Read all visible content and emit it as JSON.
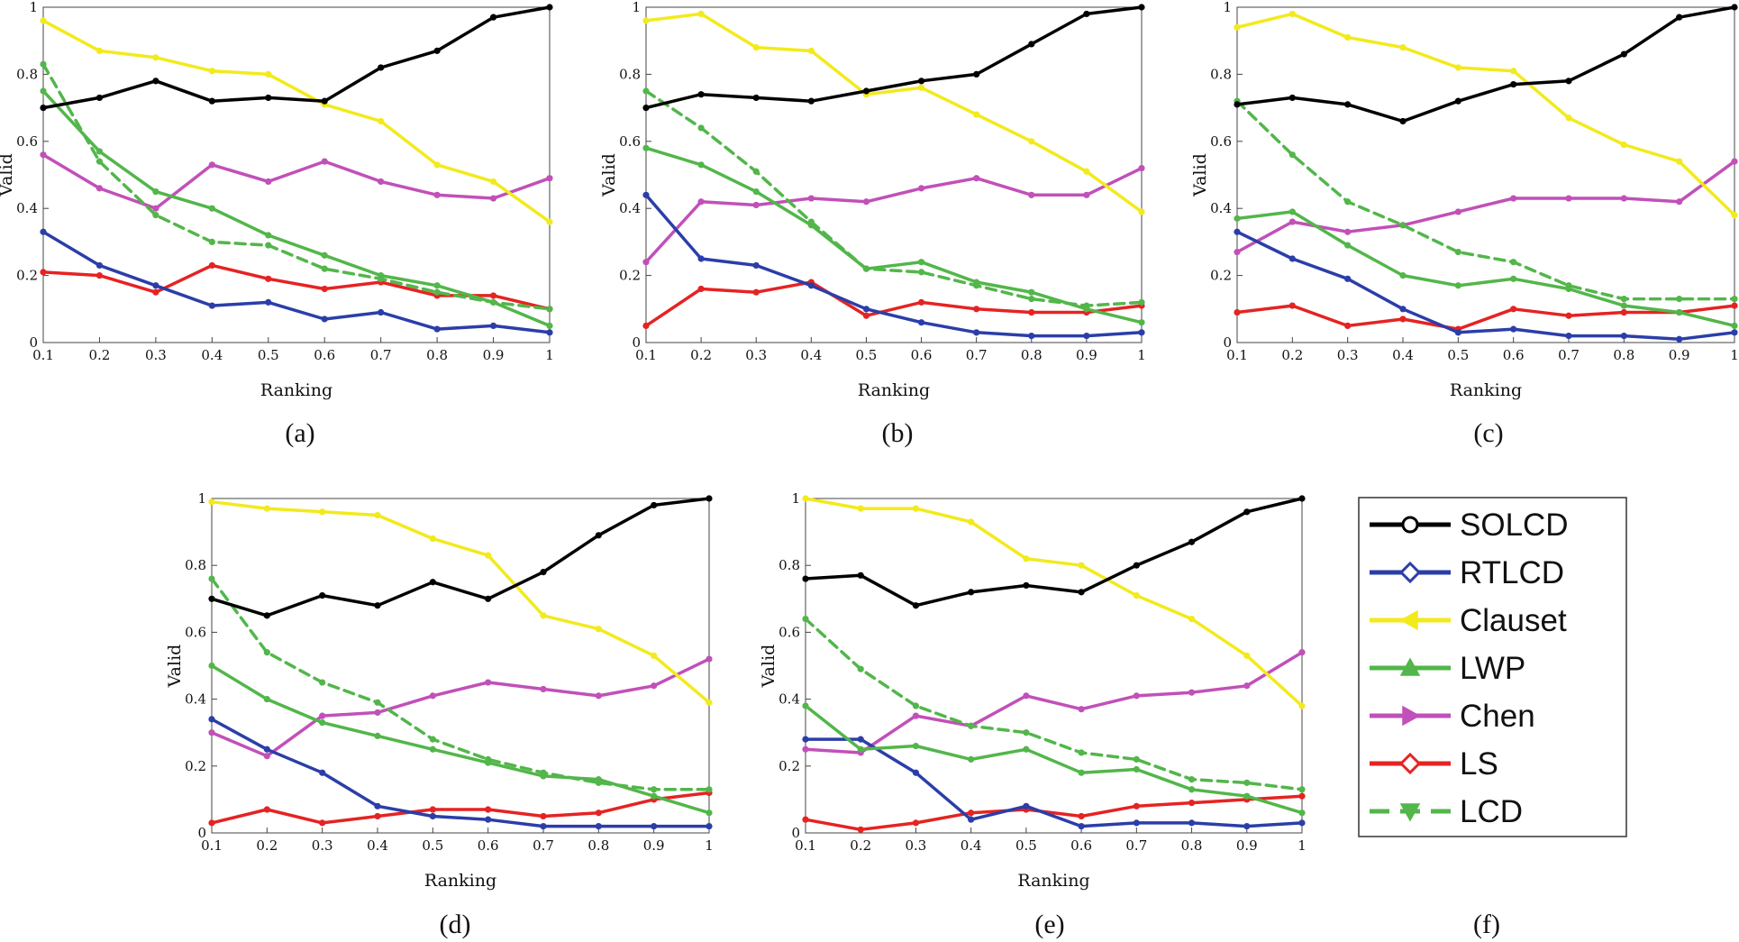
{
  "figure": {
    "captions": [
      "(a)",
      "(b)",
      "(c)",
      "(d)",
      "(e)",
      "(f)"
    ]
  },
  "legend": {
    "items": [
      {
        "name": "SOLCD",
        "color": "#000000",
        "dash": false,
        "marker": "circle"
      },
      {
        "name": "RTLCD",
        "color": "#2b3ea8",
        "dash": false,
        "marker": "diamond"
      },
      {
        "name": "Clauset",
        "color": "#f2ea1c",
        "dash": false,
        "marker": "triangle-left"
      },
      {
        "name": "LWP",
        "color": "#52b64a",
        "dash": false,
        "marker": "triangle-up"
      },
      {
        "name": "Chen",
        "color": "#c150b8",
        "dash": false,
        "marker": "triangle-right"
      },
      {
        "name": "LS",
        "color": "#e52323",
        "dash": false,
        "marker": "diamond"
      },
      {
        "name": "LCD",
        "color": "#52b64a",
        "dash": true,
        "marker": "triangle-down"
      }
    ]
  },
  "chart_data": [
    {
      "type": "line",
      "caption": "(a)",
      "xlabel": "Ranking",
      "ylabel": "Valid",
      "xlim": [
        0.1,
        1
      ],
      "ylim": [
        0,
        1
      ],
      "x": [
        0.1,
        0.2,
        0.3,
        0.4,
        0.5,
        0.6,
        0.7,
        0.8,
        0.9,
        1
      ],
      "xticks": [
        "0.1",
        "0.2",
        "0.3",
        "0.4",
        "0.5",
        "0.6",
        "0.7",
        "0.8",
        "0.9",
        "1"
      ],
      "yticks": [
        "0",
        "0.2",
        "0.4",
        "0.6",
        "0.8",
        "1"
      ],
      "series": [
        {
          "name": "SOLCD",
          "values": [
            0.7,
            0.73,
            0.78,
            0.72,
            0.73,
            0.72,
            0.82,
            0.87,
            0.97,
            1.0
          ]
        },
        {
          "name": "RTLCD",
          "values": [
            0.33,
            0.23,
            0.17,
            0.11,
            0.12,
            0.07,
            0.09,
            0.04,
            0.05,
            0.03
          ]
        },
        {
          "name": "Clauset",
          "values": [
            0.96,
            0.87,
            0.85,
            0.81,
            0.8,
            0.71,
            0.66,
            0.53,
            0.48,
            0.36
          ]
        },
        {
          "name": "LWP",
          "values": [
            0.75,
            0.57,
            0.45,
            0.4,
            0.32,
            0.26,
            0.2,
            0.17,
            0.12,
            0.05
          ]
        },
        {
          "name": "Chen",
          "values": [
            0.56,
            0.46,
            0.4,
            0.53,
            0.48,
            0.54,
            0.48,
            0.44,
            0.43,
            0.49
          ]
        },
        {
          "name": "LS",
          "values": [
            0.21,
            0.2,
            0.15,
            0.23,
            0.19,
            0.16,
            0.18,
            0.14,
            0.14,
            0.1
          ]
        },
        {
          "name": "LCD",
          "values": [
            0.83,
            0.54,
            0.38,
            0.3,
            0.29,
            0.22,
            0.19,
            0.15,
            0.12,
            0.1
          ]
        }
      ]
    },
    {
      "type": "line",
      "caption": "(b)",
      "xlabel": "Ranking",
      "ylabel": "Valid",
      "xlim": [
        0.1,
        1
      ],
      "ylim": [
        0,
        1
      ],
      "x": [
        0.1,
        0.2,
        0.3,
        0.4,
        0.5,
        0.6,
        0.7,
        0.8,
        0.9,
        1
      ],
      "xticks": [
        "0.1",
        "0.2",
        "0.3",
        "0.4",
        "0.5",
        "0.6",
        "0.7",
        "0.8",
        "0.9",
        "1"
      ],
      "yticks": [
        "0",
        "0.2",
        "0.4",
        "0.6",
        "0.8",
        "1"
      ],
      "series": [
        {
          "name": "SOLCD",
          "values": [
            0.7,
            0.74,
            0.73,
            0.72,
            0.75,
            0.78,
            0.8,
            0.89,
            0.98,
            1.0
          ]
        },
        {
          "name": "RTLCD",
          "values": [
            0.44,
            0.25,
            0.23,
            0.17,
            0.1,
            0.06,
            0.03,
            0.02,
            0.02,
            0.03
          ]
        },
        {
          "name": "Clauset",
          "values": [
            0.96,
            0.98,
            0.88,
            0.87,
            0.74,
            0.76,
            0.68,
            0.6,
            0.51,
            0.39
          ]
        },
        {
          "name": "LWP",
          "values": [
            0.58,
            0.53,
            0.45,
            0.35,
            0.22,
            0.24,
            0.18,
            0.15,
            0.1,
            0.06
          ]
        },
        {
          "name": "Chen",
          "values": [
            0.24,
            0.42,
            0.41,
            0.43,
            0.42,
            0.46,
            0.49,
            0.44,
            0.44,
            0.52
          ]
        },
        {
          "name": "LS",
          "values": [
            0.05,
            0.16,
            0.15,
            0.18,
            0.08,
            0.12,
            0.1,
            0.09,
            0.09,
            0.11
          ]
        },
        {
          "name": "LCD",
          "values": [
            0.75,
            0.64,
            0.51,
            0.36,
            0.22,
            0.21,
            0.17,
            0.13,
            0.11,
            0.12
          ]
        }
      ]
    },
    {
      "type": "line",
      "caption": "(c)",
      "xlabel": "Ranking",
      "ylabel": "Valid",
      "xlim": [
        0.1,
        1
      ],
      "ylim": [
        0,
        1
      ],
      "x": [
        0.1,
        0.2,
        0.3,
        0.4,
        0.5,
        0.6,
        0.7,
        0.8,
        0.9,
        1
      ],
      "xticks": [
        "0.1",
        "0.2",
        "0.3",
        "0.4",
        "0.5",
        "0.6",
        "0.7",
        "0.8",
        "0.9",
        "1"
      ],
      "yticks": [
        "0",
        "0.2",
        "0.4",
        "0.6",
        "0.8",
        "1"
      ],
      "series": [
        {
          "name": "SOLCD",
          "values": [
            0.71,
            0.73,
            0.71,
            0.66,
            0.72,
            0.77,
            0.78,
            0.86,
            0.97,
            1.0
          ]
        },
        {
          "name": "RTLCD",
          "values": [
            0.33,
            0.25,
            0.19,
            0.1,
            0.03,
            0.04,
            0.02,
            0.02,
            0.01,
            0.03
          ]
        },
        {
          "name": "Clauset",
          "values": [
            0.94,
            0.98,
            0.91,
            0.88,
            0.82,
            0.81,
            0.67,
            0.59,
            0.54,
            0.38
          ]
        },
        {
          "name": "LWP",
          "values": [
            0.37,
            0.39,
            0.29,
            0.2,
            0.17,
            0.19,
            0.16,
            0.11,
            0.09,
            0.05
          ]
        },
        {
          "name": "Chen",
          "values": [
            0.27,
            0.36,
            0.33,
            0.35,
            0.39,
            0.43,
            0.43,
            0.43,
            0.42,
            0.54
          ]
        },
        {
          "name": "LS",
          "values": [
            0.09,
            0.11,
            0.05,
            0.07,
            0.04,
            0.1,
            0.08,
            0.09,
            0.09,
            0.11
          ]
        },
        {
          "name": "LCD",
          "values": [
            0.72,
            0.56,
            0.42,
            0.35,
            0.27,
            0.24,
            0.17,
            0.13,
            0.13,
            0.13
          ]
        }
      ]
    },
    {
      "type": "line",
      "caption": "(d)",
      "xlabel": "Ranking",
      "ylabel": "Valid",
      "xlim": [
        0.1,
        1
      ],
      "ylim": [
        0,
        1
      ],
      "x": [
        0.1,
        0.2,
        0.3,
        0.4,
        0.5,
        0.6,
        0.7,
        0.8,
        0.9,
        1
      ],
      "xticks": [
        "0.1",
        "0.2",
        "0.3",
        "0.4",
        "0.5",
        "0.6",
        "0.7",
        "0.8",
        "0.9",
        "1"
      ],
      "yticks": [
        "0",
        "0.2",
        "0.4",
        "0.6",
        "0.8",
        "1"
      ],
      "series": [
        {
          "name": "SOLCD",
          "values": [
            0.7,
            0.65,
            0.71,
            0.68,
            0.75,
            0.7,
            0.78,
            0.89,
            0.98,
            1.0
          ]
        },
        {
          "name": "RTLCD",
          "values": [
            0.34,
            0.25,
            0.18,
            0.08,
            0.05,
            0.04,
            0.02,
            0.02,
            0.02,
            0.02
          ]
        },
        {
          "name": "Clauset",
          "values": [
            0.99,
            0.97,
            0.96,
            0.95,
            0.88,
            0.83,
            0.65,
            0.61,
            0.53,
            0.39
          ]
        },
        {
          "name": "LWP",
          "values": [
            0.5,
            0.4,
            0.33,
            0.29,
            0.25,
            0.21,
            0.17,
            0.16,
            0.11,
            0.06
          ]
        },
        {
          "name": "Chen",
          "values": [
            0.3,
            0.23,
            0.35,
            0.36,
            0.41,
            0.45,
            0.43,
            0.41,
            0.44,
            0.52
          ]
        },
        {
          "name": "LS",
          "values": [
            0.03,
            0.07,
            0.03,
            0.05,
            0.07,
            0.07,
            0.05,
            0.06,
            0.1,
            0.12
          ]
        },
        {
          "name": "LCD",
          "values": [
            0.76,
            0.54,
            0.45,
            0.39,
            0.28,
            0.22,
            0.18,
            0.15,
            0.13,
            0.13
          ]
        }
      ]
    },
    {
      "type": "line",
      "caption": "(e)",
      "xlabel": "Ranking",
      "ylabel": "Valid",
      "xlim": [
        0.1,
        1
      ],
      "ylim": [
        0,
        1
      ],
      "x": [
        0.1,
        0.2,
        0.3,
        0.4,
        0.5,
        0.6,
        0.7,
        0.8,
        0.9,
        1
      ],
      "xticks": [
        "0.1",
        "0.2",
        "0.3",
        "0.4",
        "0.5",
        "0.6",
        "0.7",
        "0.8",
        "0.9",
        "1"
      ],
      "yticks": [
        "0",
        "0.2",
        "0.4",
        "0.6",
        "0.8",
        "1"
      ],
      "series": [
        {
          "name": "SOLCD",
          "values": [
            0.76,
            0.77,
            0.68,
            0.72,
            0.74,
            0.72,
            0.8,
            0.87,
            0.96,
            1.0
          ]
        },
        {
          "name": "RTLCD",
          "values": [
            0.28,
            0.28,
            0.18,
            0.04,
            0.08,
            0.02,
            0.03,
            0.03,
            0.02,
            0.03
          ]
        },
        {
          "name": "Clauset",
          "values": [
            1.0,
            0.97,
            0.97,
            0.93,
            0.82,
            0.8,
            0.71,
            0.64,
            0.53,
            0.38
          ]
        },
        {
          "name": "LWP",
          "values": [
            0.38,
            0.25,
            0.26,
            0.22,
            0.25,
            0.18,
            0.19,
            0.13,
            0.11,
            0.06
          ]
        },
        {
          "name": "Chen",
          "values": [
            0.25,
            0.24,
            0.35,
            0.32,
            0.41,
            0.37,
            0.41,
            0.42,
            0.44,
            0.54
          ]
        },
        {
          "name": "LS",
          "values": [
            0.04,
            0.01,
            0.03,
            0.06,
            0.07,
            0.05,
            0.08,
            0.09,
            0.1,
            0.11
          ]
        },
        {
          "name": "LCD",
          "values": [
            0.64,
            0.49,
            0.38,
            0.32,
            0.3,
            0.24,
            0.22,
            0.16,
            0.15,
            0.13
          ]
        }
      ]
    }
  ]
}
